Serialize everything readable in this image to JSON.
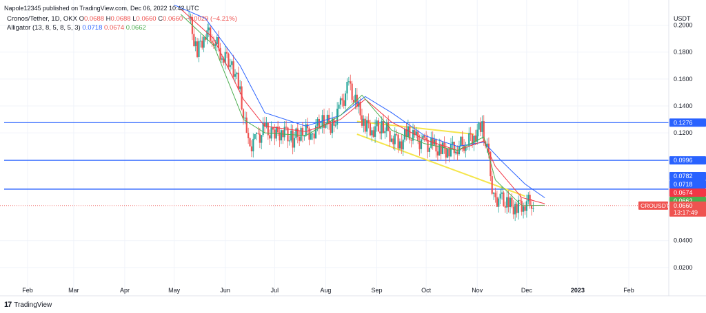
{
  "header": {
    "published": "Napole12345 published on TradingView.com, Dec 06, 2022 10:42 UTC"
  },
  "legend": {
    "symbol": "Cronos/Tether, 1D, OKX",
    "o_label": "O",
    "o_value": "0.0688",
    "h_label": "H",
    "h_value": "0.0688",
    "l_label": "L",
    "l_value": "0.0660",
    "c_label": "C",
    "c_value": "0.0660",
    "change": "−0.0029 (−4.21%)",
    "indicator": "Alligator (13, 8, 5, 8, 5, 3)",
    "jaw": "0.0718",
    "teeth": "0.0674",
    "lips": "0.0662"
  },
  "footer": {
    "brand": "TradingView"
  },
  "colors": {
    "up": "#26a69a",
    "down": "#ef5350",
    "jaw": "#2962ff",
    "teeth": "#f23645",
    "lips": "#4caf50",
    "hline": "#2962ff",
    "trendline": "#f5e54a"
  },
  "chart_data": {
    "type": "candlestick",
    "title": "Cronos/Tether, 1D, OKX",
    "ylabel": "USDT",
    "ylim": [
      0.0,
      0.21
    ],
    "y_ticks": [
      "0.2000",
      "0.1800",
      "0.1600",
      "0.1400",
      "0.1200",
      "0.0400",
      "0.0200"
    ],
    "x_ticks": [
      "Feb",
      "Mar",
      "Apr",
      "May",
      "Jun",
      "Jul",
      "Aug",
      "Sep",
      "Oct",
      "Nov",
      "Dec",
      "2023",
      "Feb"
    ],
    "horizontal_levels": [
      {
        "value": 0.1276,
        "label": "0.1276"
      },
      {
        "value": 0.0996,
        "label": "0.0996"
      },
      {
        "value": 0.0782,
        "label": "0.0782"
      }
    ],
    "price_tags": [
      {
        "label": "0.0782",
        "color": "#2962ff",
        "value": 0.0782
      },
      {
        "label": "0.0718",
        "color": "#2962ff",
        "value": 0.0718
      },
      {
        "label": "0.0674",
        "color": "#f23645",
        "value": 0.0674
      },
      {
        "label": "0.0662",
        "color": "#4caf50",
        "value": 0.0662
      }
    ],
    "current": {
      "symbol": "CROUSDT",
      "value": 0.066,
      "price": "0.0660",
      "countdown": "13:17:49"
    },
    "series": [
      {
        "name": "Alligator Jaw",
        "points": [
          [
            "2022-05-01",
            0.215
          ],
          [
            "2022-05-20",
            0.205
          ],
          [
            "2022-06-10",
            0.17
          ],
          [
            "2022-06-25",
            0.135
          ],
          [
            "2022-07-20",
            0.125
          ],
          [
            "2022-08-10",
            0.133
          ],
          [
            "2022-08-25",
            0.147
          ],
          [
            "2022-09-10",
            0.135
          ],
          [
            "2022-09-30",
            0.118
          ],
          [
            "2022-10-20",
            0.11
          ],
          [
            "2022-11-05",
            0.113
          ],
          [
            "2022-11-15",
            0.1
          ],
          [
            "2022-11-30",
            0.082
          ],
          [
            "2022-12-12",
            0.0718
          ]
        ]
      },
      {
        "name": "Alligator Teeth",
        "points": [
          [
            "2022-05-05",
            0.212
          ],
          [
            "2022-05-25",
            0.19
          ],
          [
            "2022-06-12",
            0.145
          ],
          [
            "2022-06-25",
            0.125
          ],
          [
            "2022-07-20",
            0.121
          ],
          [
            "2022-08-10",
            0.13
          ],
          [
            "2022-08-25",
            0.145
          ],
          [
            "2022-09-10",
            0.128
          ],
          [
            "2022-09-30",
            0.115
          ],
          [
            "2022-10-20",
            0.107
          ],
          [
            "2022-11-05",
            0.114
          ],
          [
            "2022-11-12",
            0.095
          ],
          [
            "2022-11-28",
            0.072
          ],
          [
            "2022-12-12",
            0.0674
          ]
        ]
      },
      {
        "name": "Alligator Lips",
        "points": [
          [
            "2022-05-05",
            0.208
          ],
          [
            "2022-05-25",
            0.185
          ],
          [
            "2022-06-12",
            0.13
          ],
          [
            "2022-06-25",
            0.12
          ],
          [
            "2022-07-20",
            0.118
          ],
          [
            "2022-08-10",
            0.133
          ],
          [
            "2022-08-23",
            0.148
          ],
          [
            "2022-09-10",
            0.122
          ],
          [
            "2022-09-30",
            0.112
          ],
          [
            "2022-10-20",
            0.107
          ],
          [
            "2022-11-05",
            0.117
          ],
          [
            "2022-11-12",
            0.085
          ],
          [
            "2022-11-28",
            0.066
          ],
          [
            "2022-12-12",
            0.0662
          ]
        ]
      }
    ],
    "trendlines": [
      {
        "from": [
          "2022-08-20",
          0.1285
        ],
        "to": [
          "2022-10-30",
          0.119
        ]
      },
      {
        "from": [
          "2022-08-20",
          0.119
        ],
        "to": [
          "2022-11-30",
          0.073
        ]
      }
    ],
    "candles_close": [
      [
        "2022-05-10",
        0.205
      ],
      [
        "2022-05-15",
        0.18
      ],
      [
        "2022-05-20",
        0.195
      ],
      [
        "2022-05-25",
        0.19
      ],
      [
        "2022-05-30",
        0.178
      ],
      [
        "2022-06-05",
        0.172
      ],
      [
        "2022-06-10",
        0.15
      ],
      [
        "2022-06-15",
        0.11
      ],
      [
        "2022-06-20",
        0.115
      ],
      [
        "2022-06-25",
        0.123
      ],
      [
        "2022-07-01",
        0.118
      ],
      [
        "2022-07-06",
        0.122
      ],
      [
        "2022-07-12",
        0.115
      ],
      [
        "2022-07-18",
        0.122
      ],
      [
        "2022-07-24",
        0.12
      ],
      [
        "2022-07-30",
        0.13
      ],
      [
        "2022-08-05",
        0.125
      ],
      [
        "2022-08-10",
        0.14
      ],
      [
        "2022-08-15",
        0.155
      ],
      [
        "2022-08-20",
        0.14
      ],
      [
        "2022-08-25",
        0.125
      ],
      [
        "2022-08-30",
        0.123
      ],
      [
        "2022-09-05",
        0.125
      ],
      [
        "2022-09-10",
        0.118
      ],
      [
        "2022-09-15",
        0.112
      ],
      [
        "2022-09-20",
        0.12
      ],
      [
        "2022-09-25",
        0.115
      ],
      [
        "2022-09-30",
        0.112
      ],
      [
        "2022-10-05",
        0.11
      ],
      [
        "2022-10-10",
        0.107
      ],
      [
        "2022-10-15",
        0.108
      ],
      [
        "2022-10-20",
        0.11
      ],
      [
        "2022-10-25",
        0.113
      ],
      [
        "2022-10-30",
        0.118
      ],
      [
        "2022-11-04",
        0.125
      ],
      [
        "2022-11-08",
        0.1
      ],
      [
        "2022-11-11",
        0.07
      ],
      [
        "2022-11-15",
        0.072
      ],
      [
        "2022-11-20",
        0.066
      ],
      [
        "2022-11-25",
        0.065
      ],
      [
        "2022-11-30",
        0.068
      ],
      [
        "2022-12-05",
        0.0688
      ],
      [
        "2022-12-06",
        0.066
      ]
    ]
  }
}
